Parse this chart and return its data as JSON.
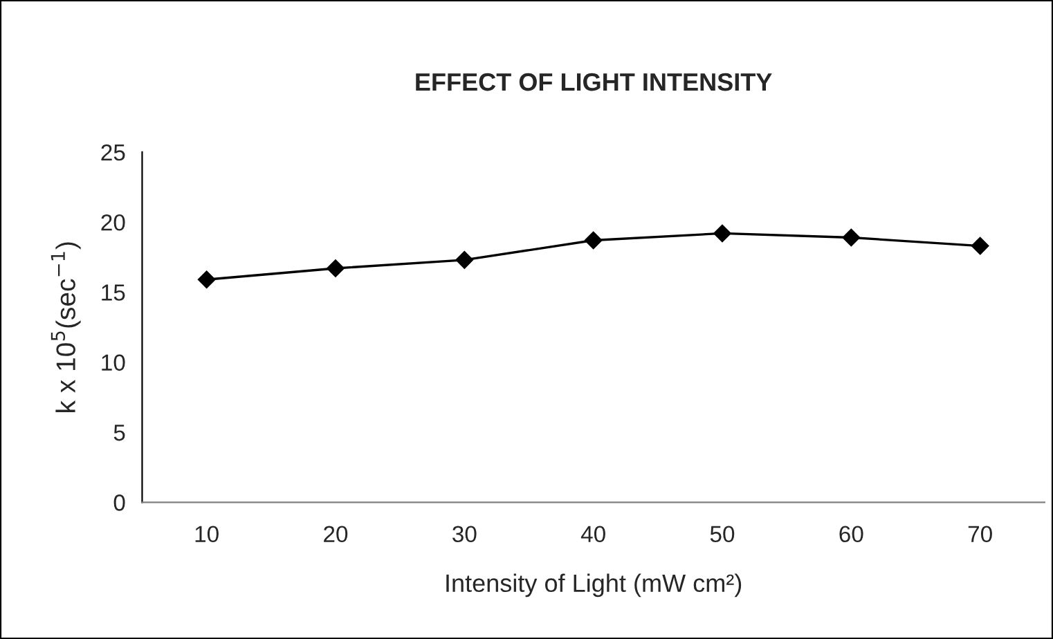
{
  "chart_data": {
    "type": "line",
    "title": "EFFECT OF LIGHT INTENSITY",
    "xlabel": "Intensity of Light (mW cm²)",
    "ylabel": "k x 10$^{5}$(sec$^{−1}$)",
    "categories": [
      "10",
      "20",
      "30",
      "40",
      "50",
      "60",
      "70"
    ],
    "series": [
      {
        "color": "#000000",
        "values": [
          15.9,
          16.7,
          17.3,
          18.7,
          19.2,
          18.9,
          18.3
        ]
      }
    ],
    "ylim": [
      0,
      25
    ],
    "yticks": [
      0,
      5,
      10,
      15,
      20,
      25
    ],
    "grid": false,
    "legend": false,
    "marker": "diamond",
    "line_style": "solid"
  }
}
